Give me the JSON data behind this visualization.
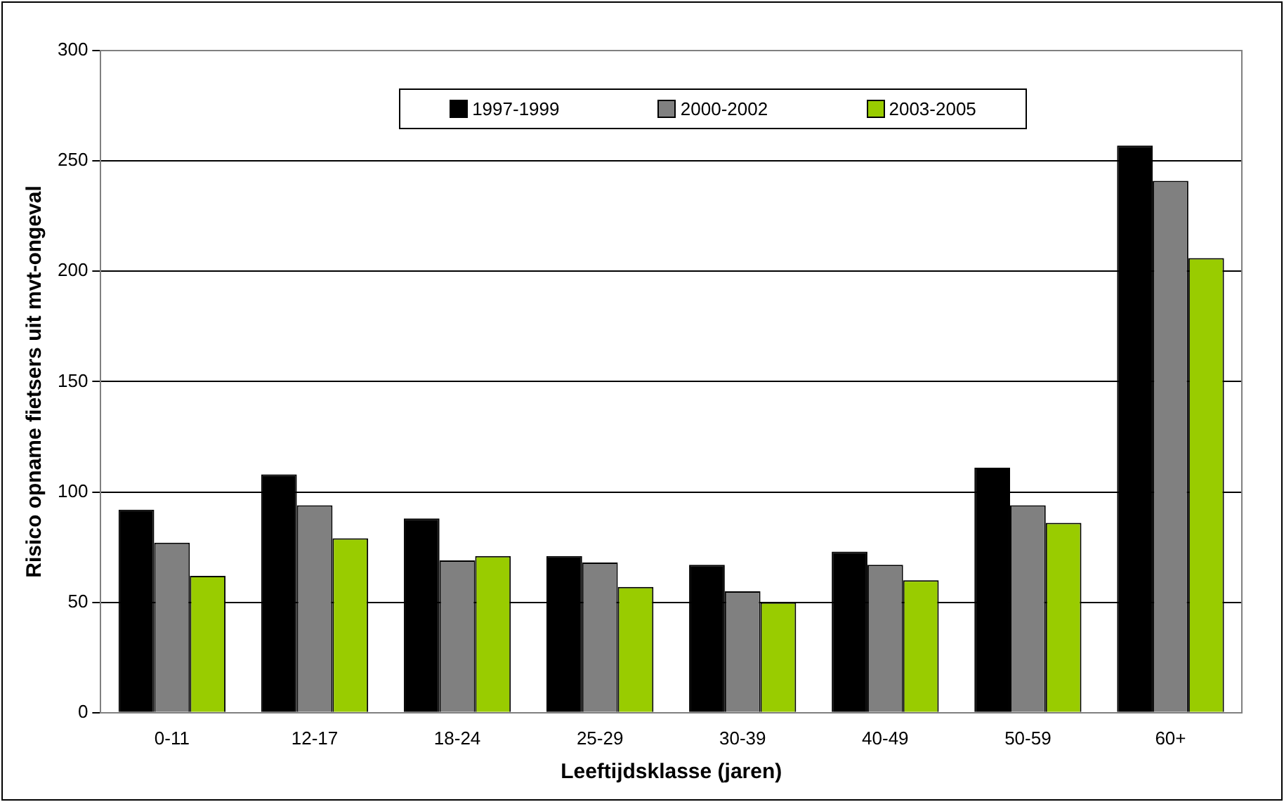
{
  "chart_data": {
    "type": "bar",
    "xlabel": "Leeftijdsklasse (jaren)",
    "ylabel": "Risico opname fietsers uit mvt-ongeval",
    "categories": [
      "0-11",
      "12-17",
      "18-24",
      "25-29",
      "30-39",
      "40-49",
      "50-59",
      "60+"
    ],
    "series": [
      {
        "name": "1997-1999",
        "color": "#000000",
        "values": [
          92,
          108,
          88,
          71,
          67,
          73,
          111,
          257
        ]
      },
      {
        "name": "2000-2002",
        "color": "#808080",
        "values": [
          77,
          94,
          69,
          68,
          55,
          67,
          94,
          241
        ]
      },
      {
        "name": "2003-2005",
        "color": "#99cc00",
        "values": [
          62,
          79,
          71,
          57,
          50,
          60,
          86,
          206
        ]
      }
    ],
    "ylim": [
      0,
      300
    ],
    "yticks": [
      0,
      50,
      100,
      150,
      200,
      250,
      300
    ],
    "grid": "y",
    "legend": "top"
  }
}
